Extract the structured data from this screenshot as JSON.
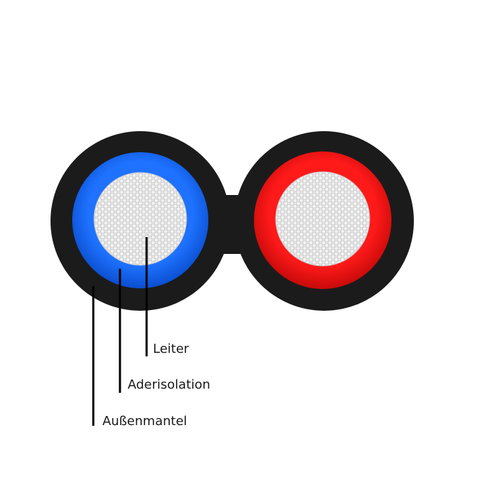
{
  "labels": {
    "conductor": "Leiter",
    "core_insulation": "Aderisolation",
    "outer_sheath": "Außenmantel"
  },
  "colors": {
    "outer_sheath": "#1b1b1b",
    "core_insulation_left": "#1466f0",
    "core_insulation_right": "#f01414",
    "conductor": "#d9d9d9",
    "conductor_strand": "#f4f4f4",
    "leader_line": "#000000"
  }
}
